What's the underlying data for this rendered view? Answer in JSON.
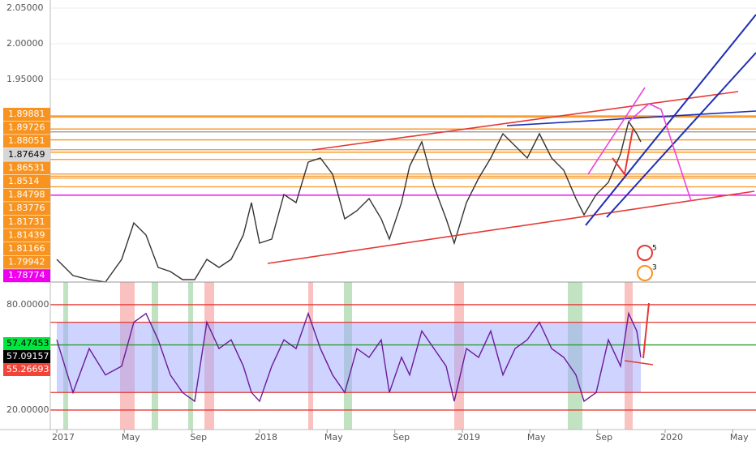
{
  "chart_data": [
    {
      "type": "line",
      "color": "#333333",
      "x": [
        2017.0,
        2017.08,
        2017.16,
        2017.24,
        2017.32,
        2017.38,
        2017.44,
        2017.5,
        2017.56,
        2017.62,
        2017.68,
        2017.74,
        2017.8,
        2017.86,
        2017.92,
        2017.96,
        2018.0,
        2018.06,
        2018.12,
        2018.18,
        2018.24,
        2018.3,
        2018.36,
        2018.42,
        2018.48,
        2018.54,
        2018.6,
        2018.64,
        2018.7,
        2018.74,
        2018.8,
        2018.86,
        2018.92,
        2018.96,
        2019.02,
        2019.08,
        2019.14,
        2019.2,
        2019.26,
        2019.32,
        2019.38,
        2019.44,
        2019.5,
        2019.56,
        2019.6,
        2019.66,
        2019.72,
        2019.78,
        2019.82,
        2019.86,
        2019.88
      ],
      "values": [
        1.6977,
        1.675,
        1.6693,
        1.6659,
        1.6977,
        1.7489,
        1.7318,
        1.6864,
        1.6807,
        1.6693,
        1.6693,
        1.6977,
        1.6864,
        1.6977,
        1.7318,
        1.7773,
        1.7205,
        1.7261,
        1.7886,
        1.7773,
        1.8341,
        1.8398,
        1.817,
        1.7545,
        1.7659,
        1.783,
        1.7545,
        1.7261,
        1.7773,
        1.8284,
        1.8625,
        1.8,
        1.7545,
        1.7205,
        1.7773,
        1.8114,
        1.8398,
        1.8739,
        1.8568,
        1.8398,
        1.8739,
        1.8398,
        1.8227,
        1.783,
        1.7602,
        1.7886,
        1.8057,
        1.8455,
        1.8909,
        1.8739,
        1.8625
      ],
      "xlim": [
        2016.968,
        2020.448
      ],
      "ylim": [
        1.6659,
        2.0614
      ],
      "xticks": [
        {
          "value": 2017,
          "label": "2017"
        },
        {
          "value": 2017.333,
          "label": "May"
        },
        {
          "value": 2017.667,
          "label": "Sep"
        },
        {
          "value": 2018,
          "label": "2018"
        },
        {
          "value": 2018.333,
          "label": "May"
        },
        {
          "value": 2018.667,
          "label": "Sep"
        },
        {
          "value": 2019,
          "label": "2019"
        },
        {
          "value": 2019.333,
          "label": "May"
        },
        {
          "value": 2019.667,
          "label": "Sep"
        },
        {
          "value": 2020,
          "label": "2020"
        },
        {
          "value": 2020.333,
          "label": "May"
        }
      ],
      "yticks": [
        {
          "value": 2.05,
          "label": "2.05000"
        },
        {
          "value": 2.0,
          "label": "2.00000"
        },
        {
          "value": 1.95,
          "label": "1.95000"
        }
      ],
      "levels": [
        {
          "value": 1.89881,
          "color": "#f7931e"
        },
        {
          "value": 1.89726,
          "color": "#f7931e"
        },
        {
          "value": 1.88051,
          "color": "#f7931e"
        },
        {
          "value": 1.87649,
          "color": "#d6d6d6"
        },
        {
          "value": 1.86531,
          "color": "#f7931e"
        },
        {
          "value": 1.8514,
          "color": "#f7931e"
        },
        {
          "value": 1.84798,
          "color": "#f7931e"
        },
        {
          "value": 1.83776,
          "color": "#f7931e"
        },
        {
          "value": 1.81731,
          "color": "#f7931e"
        },
        {
          "value": 1.81439,
          "color": "#f7931e"
        },
        {
          "value": 1.81166,
          "color": "#f7931e"
        },
        {
          "value": 1.79942,
          "color": "#f7931e"
        },
        {
          "value": 1.78774,
          "color": "#ee00ee"
        }
      ],
      "annotations": [
        "5",
        "3"
      ]
    },
    {
      "type": "line",
      "color": "#6a1b9a",
      "x": [
        2017.0,
        2017.08,
        2017.16,
        2017.24,
        2017.32,
        2017.38,
        2017.44,
        2017.5,
        2017.56,
        2017.62,
        2017.68,
        2017.74,
        2017.8,
        2017.86,
        2017.92,
        2017.96,
        2018.0,
        2018.06,
        2018.12,
        2018.18,
        2018.24,
        2018.3,
        2018.36,
        2018.42,
        2018.48,
        2018.54,
        2018.6,
        2018.64,
        2018.7,
        2018.74,
        2018.8,
        2018.86,
        2018.92,
        2018.96,
        2019.02,
        2019.08,
        2019.14,
        2019.2,
        2019.26,
        2019.32,
        2019.38,
        2019.44,
        2019.5,
        2019.56,
        2019.6,
        2019.66,
        2019.72,
        2019.78,
        2019.82,
        2019.86,
        2019.88
      ],
      "values": [
        60,
        30,
        55,
        40,
        45,
        70,
        75,
        60,
        40,
        30,
        25,
        70,
        55,
        60,
        45,
        30,
        25,
        45,
        60,
        55,
        75,
        55,
        40,
        30,
        55,
        50,
        60,
        30,
        50,
        40,
        65,
        55,
        45,
        25,
        55,
        50,
        65,
        40,
        55,
        60,
        70,
        55,
        50,
        40,
        25,
        30,
        60,
        45,
        75,
        65,
        50
      ],
      "ylim": [
        8.9,
        92.9
      ],
      "yticks": [
        {
          "value": 80,
          "label": "80.00000"
        },
        {
          "value": 20,
          "label": "20.00000"
        }
      ],
      "band": [
        30,
        70
      ],
      "lines": [
        {
          "value": 80,
          "color": "#e53935"
        },
        {
          "value": 70,
          "color": "#e53935"
        },
        {
          "value": 57.09157,
          "color": "#2e9e2e"
        },
        {
          "value": 30,
          "color": "#e53935"
        },
        {
          "value": 20,
          "color": "#e53935"
        }
      ],
      "levels": [
        {
          "value": 57.47453,
          "color": "#00e640"
        },
        {
          "value": 57.09157,
          "color": "#000000"
        },
        {
          "value": 55.26693,
          "color": "#f44336"
        }
      ]
    }
  ]
}
